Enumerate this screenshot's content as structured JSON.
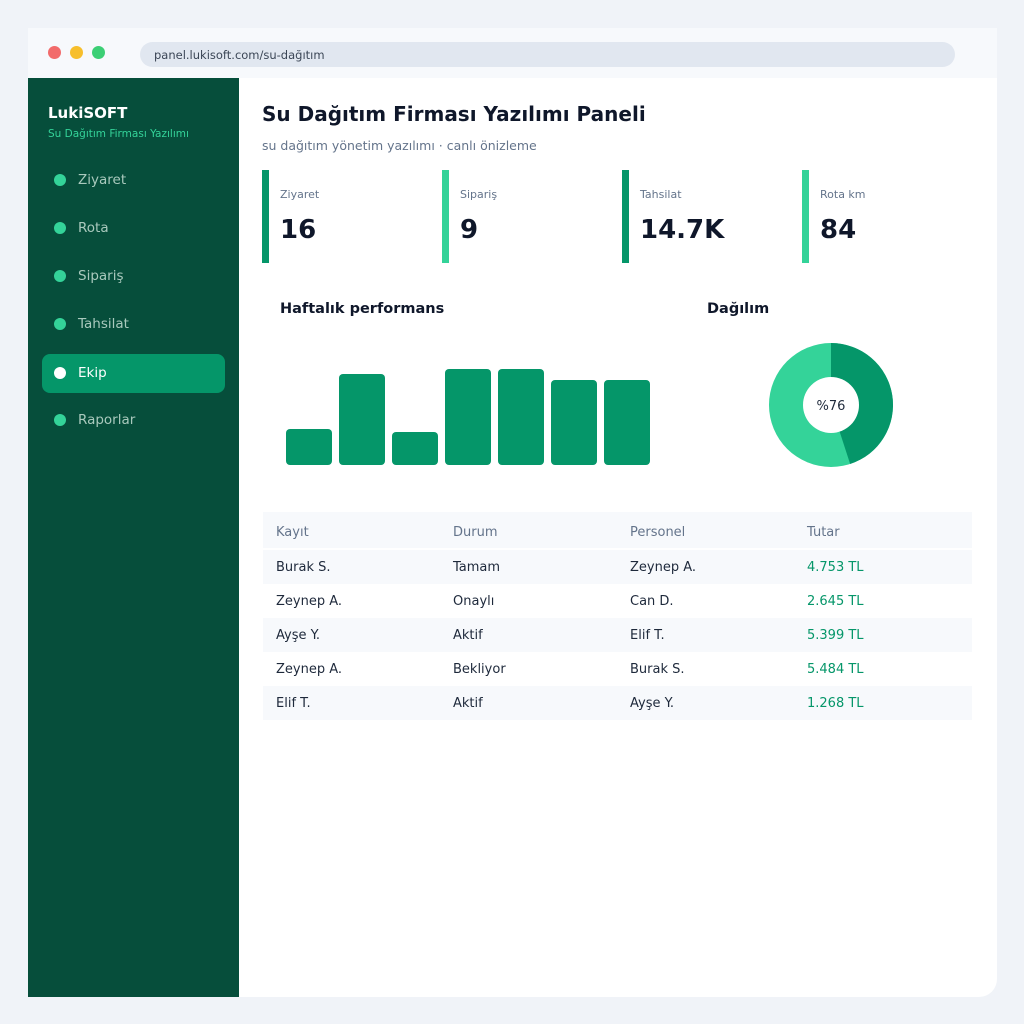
{
  "browser": {
    "url": "panel.lukisoft.com/su-dağıtım"
  },
  "sidebar": {
    "brand": "LukiSOFT",
    "subtitle": "Su Dağıtım Firması Yazılımı",
    "items": [
      {
        "label": "Ziyaret",
        "active": false
      },
      {
        "label": "Rota",
        "active": false
      },
      {
        "label": "Sipariş",
        "active": false
      },
      {
        "label": "Tahsilat",
        "active": false
      },
      {
        "label": "Ekip",
        "active": true
      },
      {
        "label": "Raporlar",
        "active": false
      }
    ]
  },
  "header": {
    "title": "Su Dağıtım Firması Yazılımı Paneli",
    "subtitle": "su dağıtım yönetim yazılımı · canlı önizleme"
  },
  "kpis": [
    {
      "label": "Ziyaret",
      "value": "16",
      "color": "#059669"
    },
    {
      "label": "Sipariş",
      "value": "9",
      "color": "#34d399"
    },
    {
      "label": "Tahsilat",
      "value": "14.7K",
      "color": "#059669"
    },
    {
      "label": "Rota km",
      "value": "84",
      "color": "#34d399"
    }
  ],
  "weekly_chart": {
    "title": "Haftalık performans"
  },
  "donut": {
    "title": "Dağılım",
    "label": "%76"
  },
  "chart_data": [
    {
      "type": "bar",
      "values": [
        36,
        91,
        33,
        96,
        96,
        85,
        85
      ],
      "ylim": [
        0,
        100
      ],
      "color": "#059669"
    },
    {
      "type": "pie",
      "values": [
        45,
        55
      ],
      "colors": [
        "#059669",
        "#34d399"
      ]
    }
  ],
  "table": {
    "columns": [
      "Kayıt",
      "Durum",
      "Personel",
      "Tutar"
    ],
    "rows": [
      [
        "Burak S.",
        "Tamam",
        "Zeynep A.",
        "4.753 TL"
      ],
      [
        "Zeynep A.",
        "Onaylı",
        "Can D.",
        "2.645 TL"
      ],
      [
        "Ayşe Y.",
        "Aktif",
        "Elif T.",
        "5.399 TL"
      ],
      [
        "Zeynep A.",
        "Bekliyor",
        "Burak S.",
        "5.484 TL"
      ],
      [
        "Elif T.",
        "Aktif",
        "Ayşe Y.",
        "1.268 TL"
      ]
    ]
  },
  "colors": {
    "sidebar_bg": "#064e3b",
    "accent": "#059669",
    "accent_light": "#34d399"
  }
}
